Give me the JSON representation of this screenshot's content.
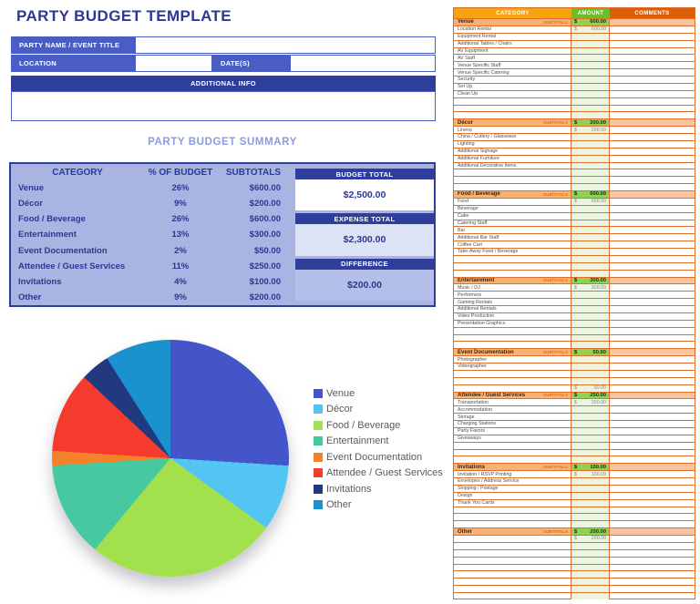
{
  "page_title": "PARTY BUDGET TEMPLATE",
  "form": {
    "party_name_label": "PARTY NAME / EVENT TITLE",
    "party_name_value": "",
    "location_label": "LOCATION",
    "location_value": "",
    "dates_label": "DATE(S)",
    "dates_value": "",
    "additional_info_label": "ADDITIONAL INFO",
    "additional_info_value": ""
  },
  "summary": {
    "title": "PARTY BUDGET SUMMARY",
    "columns": [
      "CATEGORY",
      "% OF BUDGET",
      "SUBTOTALS"
    ],
    "rows": [
      {
        "category": "Venue",
        "percent": "26%",
        "subtotal": "$600.00"
      },
      {
        "category": "Décor",
        "percent": "9%",
        "subtotal": "$200.00"
      },
      {
        "category": "Food / Beverage",
        "percent": "26%",
        "subtotal": "$600.00"
      },
      {
        "category": "Entertainment",
        "percent": "13%",
        "subtotal": "$300.00"
      },
      {
        "category": "Event Documentation",
        "percent": "2%",
        "subtotal": "$50.00"
      },
      {
        "category": "Attendee / Guest Services",
        "percent": "11%",
        "subtotal": "$250.00"
      },
      {
        "category": "Invitations",
        "percent": "4%",
        "subtotal": "$100.00"
      },
      {
        "category": "Other",
        "percent": "9%",
        "subtotal": "$200.00"
      }
    ],
    "totals": [
      {
        "label": "BUDGET TOTAL",
        "value": "$2,500.00"
      },
      {
        "label": "EXPENSE TOTAL",
        "value": "$2,300.00"
      },
      {
        "label": "DIFFERENCE",
        "value": "$200.00"
      }
    ]
  },
  "chart_data": {
    "type": "pie",
    "title": "",
    "categories": [
      "Venue",
      "Décor",
      "Food / Beverage",
      "Entertainment",
      "Event Documentation",
      "Attendee / Guest Services",
      "Invitations",
      "Other"
    ],
    "values": [
      26,
      9,
      26,
      13,
      2,
      11,
      4,
      9
    ],
    "colors": [
      "#4355c8",
      "#52c5f2",
      "#a3e04e",
      "#46c8a0",
      "#f5812a",
      "#f43b2d",
      "#21397f",
      "#1b92d0"
    ],
    "legend_position": "right",
    "start_angle_deg": 0,
    "direction": "clockwise"
  },
  "detail_table": {
    "columns": [
      "CATEGORY",
      "AMOUNT",
      "COMMENTS"
    ],
    "subtotals_label": "SUBTOTALS",
    "currency_symbol": "$",
    "sections": [
      {
        "name": "Venue",
        "subtotal": "600.00",
        "rows": [
          {
            "label": "Location Rental",
            "amount": "600.00"
          },
          {
            "label": "Equipment Rental",
            "amount": ""
          },
          {
            "label": "Additional Tables / Chairs",
            "amount": ""
          },
          {
            "label": "AV Equipment",
            "amount": ""
          },
          {
            "label": "AV Staff",
            "amount": ""
          },
          {
            "label": "Venue Specific Staff",
            "amount": ""
          },
          {
            "label": "Venue Specific Catering",
            "amount": ""
          },
          {
            "label": "Security",
            "amount": ""
          },
          {
            "label": "Set Up",
            "amount": ""
          },
          {
            "label": "Clean Up",
            "amount": ""
          },
          {
            "label": "",
            "amount": ""
          },
          {
            "label": "",
            "amount": ""
          },
          {
            "label": "",
            "amount": ""
          }
        ]
      },
      {
        "name": "Décor",
        "subtotal": "200.00",
        "rows": [
          {
            "label": "Linens",
            "amount": "200.00"
          },
          {
            "label": "China / Cutlery / Glassware",
            "amount": ""
          },
          {
            "label": "Lighting",
            "amount": ""
          },
          {
            "label": "Additional Signage",
            "amount": ""
          },
          {
            "label": "Additional Furniture",
            "amount": ""
          },
          {
            "label": "Additional Decorative Items",
            "amount": ""
          },
          {
            "label": "",
            "amount": ""
          },
          {
            "label": "",
            "amount": ""
          },
          {
            "label": "",
            "amount": ""
          }
        ]
      },
      {
        "name": "Food / Beverage",
        "subtotal": "600.00",
        "rows": [
          {
            "label": "Food",
            "amount": "600.00"
          },
          {
            "label": "Beverage",
            "amount": ""
          },
          {
            "label": "Cake",
            "amount": ""
          },
          {
            "label": "Catering Staff",
            "amount": ""
          },
          {
            "label": "Bar",
            "amount": ""
          },
          {
            "label": "Additional Bar Staff",
            "amount": ""
          },
          {
            "label": "Coffee Cart",
            "amount": ""
          },
          {
            "label": "Take-Away Food / Beverage",
            "amount": ""
          },
          {
            "label": "",
            "amount": ""
          },
          {
            "label": "",
            "amount": ""
          },
          {
            "label": "",
            "amount": ""
          }
        ]
      },
      {
        "name": "Entertainment",
        "subtotal": "300.00",
        "rows": [
          {
            "label": "Music / DJ",
            "amount": "300.00"
          },
          {
            "label": "Performers",
            "amount": ""
          },
          {
            "label": "Gaming Rentals",
            "amount": ""
          },
          {
            "label": "Additional Rentals",
            "amount": ""
          },
          {
            "label": "Video Production",
            "amount": ""
          },
          {
            "label": "Presentation Graphics",
            "amount": ""
          },
          {
            "label": "",
            "amount": ""
          },
          {
            "label": "",
            "amount": ""
          },
          {
            "label": "",
            "amount": ""
          }
        ]
      },
      {
        "name": "Event Documentation",
        "subtotal": "50.00",
        "rows": [
          {
            "label": "Photographer",
            "amount": ""
          },
          {
            "label": "Videographer",
            "amount": ""
          },
          {
            "label": "",
            "amount": ""
          },
          {
            "label": "",
            "amount": ""
          },
          {
            "label": "",
            "amount": "50.00"
          }
        ]
      },
      {
        "name": "Attendee / Guest Services",
        "subtotal": "250.00",
        "rows": [
          {
            "label": "Transportation",
            "amount": "250.00"
          },
          {
            "label": "Accommodation",
            "amount": ""
          },
          {
            "label": "Storage",
            "amount": ""
          },
          {
            "label": "Charging Stations",
            "amount": ""
          },
          {
            "label": "Party Favors",
            "amount": ""
          },
          {
            "label": "Giveaways",
            "amount": ""
          },
          {
            "label": "",
            "amount": ""
          },
          {
            "label": "",
            "amount": ""
          },
          {
            "label": "",
            "amount": ""
          }
        ]
      },
      {
        "name": "Invitations",
        "subtotal": "100.00",
        "rows": [
          {
            "label": "Invitation / RSVP Printing",
            "amount": "100.00"
          },
          {
            "label": "Envelopes / Address Service",
            "amount": ""
          },
          {
            "label": "Shipping / Postage",
            "amount": ""
          },
          {
            "label": "Design",
            "amount": ""
          },
          {
            "label": "Thank You Cards",
            "amount": ""
          },
          {
            "label": "",
            "amount": ""
          },
          {
            "label": "",
            "amount": ""
          },
          {
            "label": "",
            "amount": ""
          }
        ]
      },
      {
        "name": "Other",
        "subtotal": "200.00",
        "rows": [
          {
            "label": "",
            "amount": "200.00"
          },
          {
            "label": "",
            "amount": ""
          },
          {
            "label": "",
            "amount": ""
          },
          {
            "label": "",
            "amount": ""
          },
          {
            "label": "",
            "amount": ""
          },
          {
            "label": "",
            "amount": ""
          },
          {
            "label": "",
            "amount": ""
          },
          {
            "label": "",
            "amount": ""
          },
          {
            "label": "",
            "amount": ""
          }
        ]
      }
    ]
  },
  "colors": {
    "navy": "#2b3894",
    "header_bar_blue": "#2e3e9a",
    "label_blue": "#4a5dc4",
    "table_periwinkle": "#a9b4e3",
    "summary_title_blue": "#8b9bdf",
    "detail_category_header": "#f3a40e",
    "detail_amount_header": "#6abf28",
    "detail_comments_header": "#dc5f07",
    "detail_subtotal_row": "#f9b273",
    "detail_subtotal_amount": "#8fd150",
    "detail_amount_cell": "#eaf4df",
    "detail_grid": "#e0702c"
  }
}
